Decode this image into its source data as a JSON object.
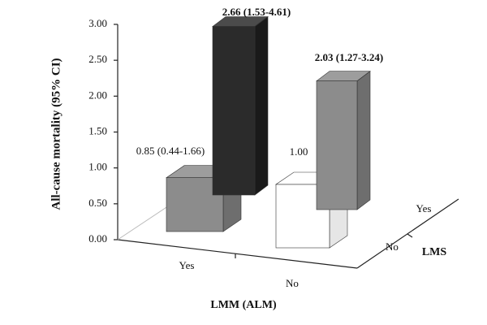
{
  "chart_data": {
    "type": "bar",
    "ylabel": "All-cause mortality (95% CI)",
    "xlabel": "LMM (ALM)",
    "depth_label": "LMS",
    "categories": [
      "Yes",
      "No"
    ],
    "ylim": [
      0,
      3
    ],
    "yticks": [
      {
        "value": 0,
        "label": "0.00"
      },
      {
        "value": 0.5,
        "label": "0.50"
      },
      {
        "value": 1,
        "label": "1.00"
      },
      {
        "value": 1.5,
        "label": "1.50"
      },
      {
        "value": 2,
        "label": "2.00"
      },
      {
        "value": 2.5,
        "label": "2.50"
      },
      {
        "value": 3,
        "label": "3.00"
      }
    ],
    "series": [
      {
        "name": "No",
        "colors": [
          "#8c8c8c",
          "#ffffff"
        ],
        "values": [
          0.85,
          1.0
        ],
        "value_labels": [
          "0.85 (0.44-1.66)",
          "1.00"
        ]
      },
      {
        "name": "Yes",
        "colors": [
          "#2b2b2b",
          "#8c8c8c"
        ],
        "values": [
          2.66,
          2.03
        ],
        "value_labels": [
          "2.66 (1.53-4.61)",
          "2.03 (1.27-3.24)"
        ]
      }
    ]
  }
}
